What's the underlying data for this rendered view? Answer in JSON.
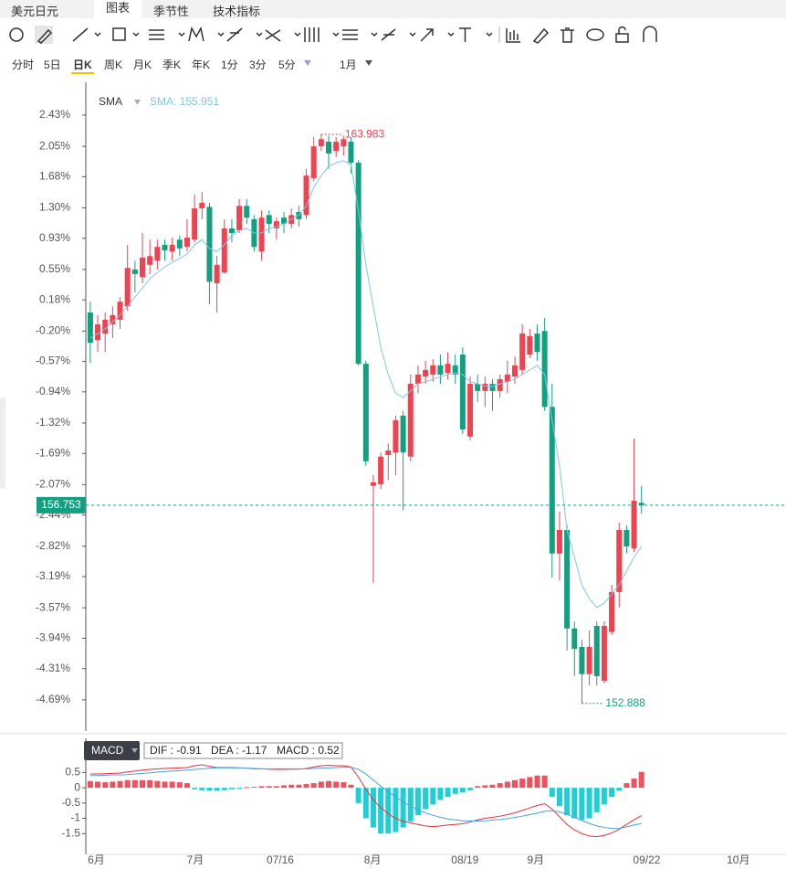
{
  "tabs": {
    "symbol": "美元日元",
    "items": [
      "图表",
      "季节性",
      "技术指标"
    ]
  },
  "periods": {
    "items": [
      "分时",
      "5日",
      "日K",
      "周K",
      "月K",
      "季K",
      "年K",
      "1分",
      "3分",
      "5分"
    ],
    "range": "1月"
  },
  "chart_data": [
    {
      "type": "candlestick",
      "indicator": "SMA",
      "readout": "SMA: 155.951",
      "up_color": "#f0434f",
      "down_color": "#13a080",
      "xlim": [
        -0.6,
        93.4
      ],
      "xticks": [
        {
          "value": 0.8,
          "label": "6月"
        },
        {
          "value": 14.1,
          "label": "7月"
        },
        {
          "value": 25.5,
          "label": "07/16"
        },
        {
          "value": 37.9,
          "label": "8月"
        },
        {
          "value": 50.3,
          "label": "08/19"
        },
        {
          "value": 59.8,
          "label": "9月"
        },
        {
          "value": 74.7,
          "label": "09/22"
        },
        {
          "value": 87.0,
          "label": "10月"
        }
      ],
      "ylim": [
        -5.07,
        2.83
      ],
      "yticks": [
        {
          "value": 2.43,
          "label": "2.43%"
        },
        {
          "value": 2.05,
          "label": "2.05%"
        },
        {
          "value": 1.68,
          "label": "1.68%"
        },
        {
          "value": 1.3,
          "label": "1.30%"
        },
        {
          "value": 0.93,
          "label": "0.93%"
        },
        {
          "value": 0.55,
          "label": "0.55%"
        },
        {
          "value": 0.18,
          "label": "0.18%"
        },
        {
          "value": -0.2,
          "label": "-0.20%"
        },
        {
          "value": -0.57,
          "label": "-0.57%"
        },
        {
          "value": -0.94,
          "label": "-0.94%"
        },
        {
          "value": -1.32,
          "label": "-1.32%"
        },
        {
          "value": -1.69,
          "label": "-1.69%"
        },
        {
          "value": -2.07,
          "label": "-2.07%"
        },
        {
          "value": -2.44,
          "label": "-2.44%"
        },
        {
          "value": -2.82,
          "label": "-2.82%"
        },
        {
          "value": -3.19,
          "label": "-3.19%"
        },
        {
          "value": -3.57,
          "label": "-3.57%"
        },
        {
          "value": -3.94,
          "label": "-3.94%"
        },
        {
          "value": -4.31,
          "label": "-4.31%"
        },
        {
          "value": -4.69,
          "label": "-4.69%"
        }
      ],
      "y2lim": [
        152.35,
        165.0
      ],
      "candles": [
        [
          160.51,
          160.72,
          159.53,
          159.92
        ],
        [
          159.97,
          160.46,
          159.74,
          160.28
        ],
        [
          160.1,
          160.51,
          159.74,
          160.37
        ],
        [
          160.28,
          160.63,
          160.01,
          160.46
        ],
        [
          160.37,
          160.81,
          160.19,
          160.72
        ],
        [
          160.63,
          161.83,
          160.54,
          161.38
        ],
        [
          161.35,
          161.52,
          160.9,
          161.26
        ],
        [
          161.2,
          162.06,
          161.08,
          161.58
        ],
        [
          161.44,
          161.93,
          161.26,
          161.61
        ],
        [
          161.52,
          161.93,
          161.35,
          161.79
        ],
        [
          161.83,
          161.93,
          161.52,
          161.72
        ],
        [
          161.7,
          161.97,
          161.52,
          161.83
        ],
        [
          161.93,
          162.01,
          161.61,
          161.76
        ],
        [
          161.79,
          162.33,
          161.7,
          161.97
        ],
        [
          161.93,
          162.81,
          161.88,
          162.54
        ],
        [
          162.54,
          162.86,
          162.33,
          162.65
        ],
        [
          162.57,
          162.65,
          160.67,
          161.11
        ],
        [
          161.08,
          161.61,
          160.51,
          161.44
        ],
        [
          161.29,
          162.33,
          161.26,
          162.15
        ],
        [
          162.15,
          162.33,
          161.88,
          162.06
        ],
        [
          162.11,
          162.72,
          162.06,
          162.59
        ],
        [
          162.59,
          162.72,
          162.24,
          162.36
        ],
        [
          162.33,
          162.41,
          161.7,
          161.79
        ],
        [
          161.7,
          162.5,
          161.52,
          162.36
        ],
        [
          162.41,
          162.5,
          162.06,
          162.24
        ],
        [
          162.15,
          162.36,
          161.93,
          162.29
        ],
        [
          162.36,
          162.47,
          162.06,
          162.24
        ],
        [
          162.24,
          162.54,
          162.15,
          162.41
        ],
        [
          162.47,
          162.59,
          162.18,
          162.33
        ],
        [
          162.41,
          163.31,
          162.33,
          163.18
        ],
        [
          163.13,
          163.93,
          163.07,
          163.75
        ],
        [
          163.75,
          163.983,
          163.66,
          163.89
        ],
        [
          163.84,
          163.96,
          163.31,
          163.61
        ],
        [
          163.66,
          163.93,
          163.54,
          163.84
        ],
        [
          163.75,
          163.96,
          163.57,
          163.89
        ],
        [
          163.84,
          163.93,
          163.22,
          163.43
        ],
        [
          163.43,
          163.48,
          159.48,
          159.51
        ],
        [
          159.51,
          159.57,
          157.52,
          157.61
        ],
        [
          157.13,
          157.34,
          155.24,
          157.2
        ],
        [
          157.16,
          157.78,
          157.07,
          157.7
        ],
        [
          157.73,
          157.96,
          157.25,
          157.82
        ],
        [
          157.78,
          158.5,
          157.34,
          158.41
        ],
        [
          158.5,
          158.59,
          156.66,
          157.78
        ],
        [
          157.7,
          159.3,
          157.61,
          159.12
        ],
        [
          159.12,
          159.48,
          158.94,
          159.3
        ],
        [
          159.26,
          159.57,
          159.12,
          159.39
        ],
        [
          159.3,
          159.6,
          159.16,
          159.48
        ],
        [
          159.48,
          159.69,
          159.12,
          159.3
        ],
        [
          159.33,
          159.74,
          159.21,
          159.51
        ],
        [
          159.48,
          159.69,
          159.12,
          159.3
        ],
        [
          159.69,
          159.83,
          158.14,
          158.23
        ],
        [
          158.09,
          159.26,
          158.02,
          159.12
        ],
        [
          159.12,
          159.3,
          158.76,
          158.98
        ],
        [
          158.98,
          159.26,
          158.67,
          159.12
        ],
        [
          159.12,
          159.21,
          158.59,
          158.98
        ],
        [
          158.98,
          159.3,
          158.85,
          159.21
        ],
        [
          159.16,
          159.57,
          158.94,
          159.3
        ],
        [
          159.26,
          159.65,
          159.12,
          159.48
        ],
        [
          159.39,
          160.28,
          159.3,
          160.1
        ],
        [
          159.69,
          160.19,
          159.62,
          160.05
        ],
        [
          160.1,
          160.28,
          159.57,
          159.74
        ],
        [
          160.15,
          160.4,
          158.59,
          158.67
        ],
        [
          158.67,
          159.12,
          155.34,
          155.81
        ],
        [
          155.81,
          156.63,
          155.29,
          156.27
        ],
        [
          156.27,
          156.36,
          153.92,
          154.35
        ],
        [
          154.35,
          154.49,
          153.42,
          153.95
        ],
        [
          153.99,
          154.13,
          152.888,
          153.46
        ],
        [
          153.46,
          154.31,
          153.24,
          153.99
        ],
        [
          154.4,
          154.49,
          153.24,
          153.42
        ],
        [
          153.33,
          154.49,
          153.28,
          154.4
        ],
        [
          154.28,
          155.2,
          154.22,
          155.06
        ],
        [
          155.06,
          156.41,
          154.76,
          156.27
        ],
        [
          156.27,
          156.36,
          155.82,
          155.95
        ],
        [
          155.91,
          158.05,
          155.84,
          156.84
        ],
        [
          156.8,
          157.13,
          156.59,
          156.753
        ]
      ],
      "series": [
        {
          "name": "SMA",
          "color": "#7ec6e8",
          "values": [
            160.01,
            160.1,
            160.19,
            160.33,
            160.46,
            160.63,
            160.81,
            160.99,
            161.17,
            161.29,
            161.4,
            161.49,
            161.56,
            161.65,
            161.83,
            161.93,
            161.76,
            161.7,
            161.83,
            162.01,
            162.11,
            162.15,
            162.06,
            162.06,
            162.15,
            162.18,
            162.24,
            162.33,
            162.41,
            162.59,
            162.95,
            163.18,
            163.36,
            163.43,
            163.47,
            163.39,
            162.5,
            161.44,
            160.63,
            159.83,
            159.3,
            158.94,
            158.85,
            158.98,
            159.12,
            159.16,
            159.21,
            159.26,
            159.3,
            159.33,
            159.3,
            159.16,
            159.12,
            159.08,
            159.07,
            159.12,
            159.16,
            159.21,
            159.3,
            159.39,
            159.48,
            159.3,
            158.41,
            157.52,
            156.27,
            155.74,
            155.2,
            154.93,
            154.76,
            154.84,
            155.02,
            155.2,
            155.47,
            155.74,
            155.951
          ]
        }
      ]
    },
    {
      "type": "macd",
      "title": "MACD",
      "readout": [
        "DIF : -0.91",
        "DEA : -1.17",
        "MACD : 0.52"
      ],
      "up_color": "#f3505d",
      "down_color": "#20cfd6",
      "ylim": [
        -2.18,
        0.81
      ],
      "yticks": [
        0.5,
        0,
        -0.5,
        -1,
        -1.5
      ],
      "values": [
        0.22,
        0.2,
        0.18,
        0.2,
        0.22,
        0.25,
        0.25,
        0.25,
        0.25,
        0.22,
        0.2,
        0.2,
        0.18,
        0.15,
        -0.05,
        -0.08,
        -0.1,
        -0.1,
        -0.08,
        -0.05,
        -0.03,
        0.02,
        0.03,
        0.05,
        0.05,
        0.05,
        0.08,
        0.1,
        0.1,
        0.12,
        0.15,
        0.2,
        0.22,
        0.2,
        0.18,
        0.1,
        -0.5,
        -1.0,
        -1.3,
        -1.5,
        -1.5,
        -1.45,
        -1.3,
        -1.1,
        -0.9,
        -0.7,
        -0.55,
        -0.4,
        -0.3,
        -0.2,
        -0.15,
        -0.08,
        0.05,
        0.08,
        0.1,
        0.15,
        0.2,
        0.25,
        0.3,
        0.35,
        0.4,
        0.4,
        -0.3,
        -0.6,
        -0.9,
        -1.0,
        -1.05,
        -1.0,
        -0.8,
        -0.55,
        -0.3,
        -0.1,
        0.15,
        0.3,
        0.52
      ],
      "series": [
        {
          "name": "DIF",
          "color": "#e0313f",
          "values": [
            0.45,
            0.45,
            0.46,
            0.47,
            0.48,
            0.52,
            0.55,
            0.58,
            0.6,
            0.62,
            0.63,
            0.64,
            0.65,
            0.66,
            0.72,
            0.75,
            0.7,
            0.66,
            0.66,
            0.66,
            0.65,
            0.64,
            0.62,
            0.62,
            0.61,
            0.6,
            0.6,
            0.61,
            0.61,
            0.63,
            0.68,
            0.72,
            0.73,
            0.72,
            0.72,
            0.68,
            0.35,
            -0.05,
            -0.4,
            -0.65,
            -0.85,
            -1.0,
            -1.1,
            -1.15,
            -1.2,
            -1.25,
            -1.27,
            -1.25,
            -1.22,
            -1.2,
            -1.18,
            -1.12,
            -1.05,
            -1.0,
            -0.97,
            -0.93,
            -0.88,
            -0.82,
            -0.74,
            -0.66,
            -0.58,
            -0.52,
            -0.7,
            -0.95,
            -1.2,
            -1.38,
            -1.5,
            -1.58,
            -1.6,
            -1.56,
            -1.48,
            -1.36,
            -1.2,
            -1.05,
            -0.91
          ]
        },
        {
          "name": "DEA",
          "color": "#4aa3df",
          "values": [
            0.4,
            0.4,
            0.41,
            0.42,
            0.42,
            0.43,
            0.45,
            0.47,
            0.49,
            0.51,
            0.53,
            0.55,
            0.56,
            0.58,
            0.6,
            0.62,
            0.64,
            0.65,
            0.65,
            0.65,
            0.65,
            0.64,
            0.63,
            0.62,
            0.62,
            0.62,
            0.62,
            0.62,
            0.62,
            0.62,
            0.63,
            0.64,
            0.65,
            0.66,
            0.67,
            0.67,
            0.6,
            0.45,
            0.25,
            0.05,
            -0.13,
            -0.3,
            -0.46,
            -0.6,
            -0.72,
            -0.82,
            -0.9,
            -0.97,
            -1.02,
            -1.05,
            -1.08,
            -1.09,
            -1.09,
            -1.08,
            -1.06,
            -1.04,
            -1.01,
            -0.97,
            -0.93,
            -0.88,
            -0.83,
            -0.77,
            -0.75,
            -0.79,
            -0.87,
            -0.97,
            -1.07,
            -1.17,
            -1.25,
            -1.3,
            -1.33,
            -1.33,
            -1.28,
            -1.22,
            -1.17
          ]
        }
      ]
    }
  ]
}
